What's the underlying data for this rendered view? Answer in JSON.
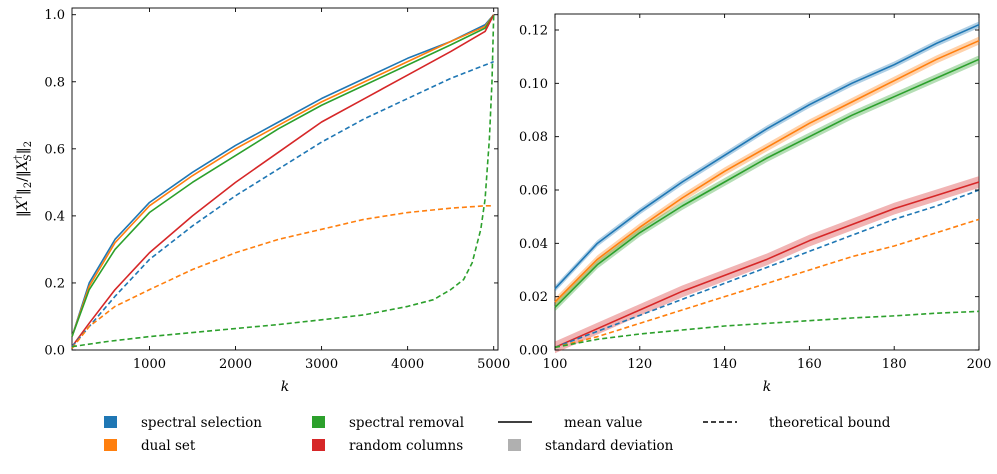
{
  "colors": {
    "spectral_selection": "#1f77b4",
    "dual_set": "#ff7f0e",
    "spectral_removal": "#2ca02c",
    "random_columns": "#d62728",
    "neutral": "#000000",
    "std_patch": "#b0b0b0"
  },
  "legend": [
    {
      "key": "spectral_selection",
      "label": "spectral selection",
      "kind": "patch"
    },
    {
      "key": "dual_set",
      "label": "dual set",
      "kind": "patch"
    },
    {
      "key": "spectral_removal",
      "label": "spectral removal",
      "kind": "patch"
    },
    {
      "key": "random_columns",
      "label": "random columns",
      "kind": "patch"
    },
    {
      "key": "mean",
      "label": "mean value",
      "kind": "solid"
    },
    {
      "key": "std",
      "label": "standard deviation",
      "kind": "std"
    },
    {
      "key": "bound",
      "label": "theoretical bound",
      "kind": "dashed"
    }
  ],
  "chart_data": [
    {
      "type": "line",
      "title": "",
      "xlabel": "k",
      "ylabel": "‖X†‖₂/‖X_S†‖₂",
      "xlim": [
        100,
        5050
      ],
      "ylim": [
        0,
        1.02
      ],
      "xticks": [
        1000,
        2000,
        3000,
        4000,
        5000
      ],
      "yticks": [
        0.0,
        0.2,
        0.4,
        0.6,
        0.8,
        1.0
      ],
      "x": [
        100,
        300,
        600,
        1000,
        1500,
        2000,
        2500,
        3000,
        3500,
        4000,
        4500,
        4900,
        5000
      ],
      "series": [
        {
          "name": "spectral selection",
          "key": "spectral_selection",
          "style": "solid",
          "values": [
            0.04,
            0.2,
            0.33,
            0.44,
            0.53,
            0.61,
            0.68,
            0.75,
            0.81,
            0.87,
            0.92,
            0.97,
            1.0
          ]
        },
        {
          "name": "dual set",
          "key": "dual_set",
          "style": "solid",
          "values": [
            0.04,
            0.19,
            0.32,
            0.43,
            0.52,
            0.6,
            0.67,
            0.74,
            0.8,
            0.86,
            0.92,
            0.965,
            1.0
          ]
        },
        {
          "name": "spectral removal",
          "key": "spectral_removal",
          "style": "solid",
          "values": [
            0.04,
            0.18,
            0.3,
            0.41,
            0.5,
            0.58,
            0.66,
            0.73,
            0.79,
            0.85,
            0.91,
            0.96,
            1.0
          ]
        },
        {
          "name": "random columns",
          "key": "random_columns",
          "style": "solid",
          "values": [
            0.01,
            0.08,
            0.18,
            0.29,
            0.4,
            0.5,
            0.59,
            0.68,
            0.75,
            0.82,
            0.89,
            0.95,
            1.0
          ]
        },
        {
          "name": "spectral selection bound",
          "key": "spectral_selection",
          "style": "dashed",
          "values": [
            0.01,
            0.07,
            0.16,
            0.27,
            0.37,
            0.46,
            0.54,
            0.62,
            0.69,
            0.75,
            0.81,
            0.85,
            0.86
          ]
        },
        {
          "name": "dual set bound",
          "key": "dual_set",
          "style": "dashed",
          "values": [
            0.005,
            0.07,
            0.13,
            0.18,
            0.24,
            0.29,
            0.33,
            0.36,
            0.39,
            0.41,
            0.423,
            0.43,
            0.43
          ]
        },
        {
          "name": "spectral removal bound",
          "key": "spectral_removal",
          "style": "dashed",
          "x": [
            100,
            500,
            1000,
            1500,
            2000,
            2500,
            3000,
            3500,
            4000,
            4300,
            4500,
            4650,
            4750,
            4850,
            4900,
            4950,
            4980,
            5000
          ],
          "values": [
            0.01,
            0.025,
            0.04,
            0.052,
            0.064,
            0.076,
            0.09,
            0.105,
            0.13,
            0.15,
            0.18,
            0.21,
            0.26,
            0.36,
            0.45,
            0.63,
            0.8,
            1.0
          ]
        }
      ]
    },
    {
      "type": "line",
      "title": "",
      "xlabel": "k",
      "ylabel": "",
      "xlim": [
        100,
        200
      ],
      "ylim": [
        0,
        0.126
      ],
      "xticks": [
        100,
        120,
        140,
        160,
        180,
        200
      ],
      "yticks": [
        0.0,
        0.02,
        0.04,
        0.06,
        0.08,
        0.1,
        0.12
      ],
      "x": [
        100,
        110,
        120,
        130,
        140,
        150,
        160,
        170,
        180,
        190,
        200
      ],
      "series": [
        {
          "name": "spectral selection",
          "key": "spectral_selection",
          "style": "solid",
          "std": 0.0012,
          "values": [
            0.023,
            0.04,
            0.052,
            0.063,
            0.073,
            0.083,
            0.092,
            0.1,
            0.107,
            0.115,
            0.122
          ]
        },
        {
          "name": "dual set",
          "key": "dual_set",
          "style": "solid",
          "std": 0.0015,
          "values": [
            0.018,
            0.034,
            0.046,
            0.057,
            0.067,
            0.076,
            0.085,
            0.093,
            0.101,
            0.109,
            0.116
          ]
        },
        {
          "name": "spectral removal",
          "key": "spectral_removal",
          "style": "solid",
          "std": 0.0015,
          "values": [
            0.016,
            0.032,
            0.044,
            0.054,
            0.063,
            0.072,
            0.08,
            0.088,
            0.095,
            0.102,
            0.109
          ]
        },
        {
          "name": "random columns",
          "key": "random_columns",
          "style": "solid",
          "std": 0.0022,
          "values": [
            0.001,
            0.008,
            0.015,
            0.022,
            0.028,
            0.034,
            0.041,
            0.047,
            0.053,
            0.058,
            0.063
          ]
        },
        {
          "name": "spectral selection bound",
          "key": "spectral_selection",
          "style": "dashed",
          "values": [
            0.001,
            0.007,
            0.013,
            0.019,
            0.025,
            0.031,
            0.037,
            0.043,
            0.049,
            0.054,
            0.06
          ]
        },
        {
          "name": "dual set bound",
          "key": "dual_set",
          "style": "dashed",
          "values": [
            0.001,
            0.005,
            0.01,
            0.015,
            0.02,
            0.025,
            0.03,
            0.035,
            0.039,
            0.044,
            0.049
          ]
        },
        {
          "name": "spectral removal bound",
          "key": "spectral_removal",
          "style": "dashed",
          "values": [
            0.001,
            0.004,
            0.006,
            0.0075,
            0.009,
            0.01,
            0.011,
            0.012,
            0.0128,
            0.0138,
            0.0145
          ]
        }
      ]
    }
  ]
}
